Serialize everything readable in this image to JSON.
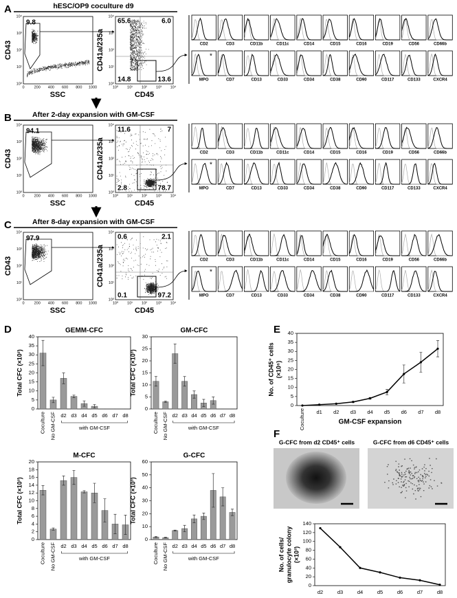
{
  "panels": {
    "labels": [
      "A",
      "B",
      "C",
      "D",
      "E",
      "F"
    ],
    "flow": {
      "axes": {
        "cd43": "CD43",
        "ssc": "SSC",
        "cd41": "CD41a/235a",
        "cd45": "CD45"
      },
      "log_ticks": [
        "10⁰",
        "10¹",
        "10²",
        "10³",
        "10⁴"
      ],
      "ssc_ticks": [
        "0",
        "200",
        "400",
        "600",
        "800",
        "1000"
      ],
      "markers": [
        [
          "CD2",
          "CD3",
          "CD11b",
          "CD11c",
          "CD14",
          "CD15",
          "CD16",
          "CD19",
          "CD56",
          "CD66b"
        ],
        [
          "MPO",
          "CD7",
          "CD13",
          "CD33",
          "CD34",
          "CD38",
          "CD90",
          "CD117",
          "CD133",
          "CXCR4"
        ]
      ],
      "asterisk": "*",
      "rows": [
        {
          "title": "hESC/OP9 coculture d9",
          "gate": "9.8",
          "quadrants": [
            "65.6",
            "6.0",
            "14.8",
            "13.6"
          ]
        },
        {
          "title": "After 2-day expansion with GM-CSF",
          "gate": "94.1",
          "quadrants": [
            "11.6",
            "7",
            "2.8",
            "78.7"
          ]
        },
        {
          "title": "After 8-day expansion with GM-CSF",
          "gate": "97.9",
          "quadrants": [
            "0.6",
            "2.1",
            "0.1",
            "97.2"
          ]
        }
      ]
    },
    "f_images": [
      "G-CFC from d2 CD45⁺ cells",
      "G-CFC from d6 CD45⁺ cells"
    ]
  },
  "chart_data": [
    {
      "type": "bar",
      "title": "GEMM-CFC",
      "ylabel": "Total CFC (×10²)",
      "categories": [
        "Coculture",
        "No GM-CSF",
        "d2",
        "d3",
        "d4",
        "d5",
        "d6",
        "d7",
        "d8"
      ],
      "values": [
        31,
        5,
        17,
        7,
        3,
        1.5,
        0,
        0,
        0
      ],
      "errors": [
        7,
        1.5,
        3,
        0.7,
        1.5,
        1,
        0,
        0,
        0
      ],
      "color": "#9a9a9a",
      "ylim": [
        0,
        40
      ],
      "yticks": [
        0,
        5,
        10,
        15,
        20,
        25,
        30,
        35,
        40
      ],
      "group_label": "with GM-CSF"
    },
    {
      "type": "bar",
      "title": "GM-CFC",
      "ylabel": "Total CFC (×10³)",
      "categories": [
        "Coculture",
        "No GM-CSF",
        "d2",
        "d3",
        "d4",
        "d5",
        "d6",
        "d7",
        "d8"
      ],
      "values": [
        11.5,
        3,
        23,
        11.5,
        6,
        2.5,
        3.5,
        0,
        0
      ],
      "errors": [
        2,
        0.3,
        4,
        2,
        1.5,
        1.5,
        1.5,
        0,
        0
      ],
      "color": "#9a9a9a",
      "ylim": [
        0,
        30
      ],
      "yticks": [
        0,
        5,
        10,
        15,
        20,
        25,
        30
      ],
      "group_label": "with GM-CSF"
    },
    {
      "type": "bar",
      "title": "M-CFC",
      "ylabel": "Total CFC (×10³)",
      "categories": [
        "Coculture",
        "No GM-CSF",
        "d2",
        "d3",
        "d4",
        "d5",
        "d6",
        "d7",
        "d8"
      ],
      "values": [
        12.7,
        2.7,
        15.2,
        16,
        12.3,
        12,
        7.5,
        4,
        3.8
      ],
      "errors": [
        1.2,
        0.3,
        1.2,
        1.8,
        0.3,
        2.5,
        3,
        2.5,
        2.5
      ],
      "color": "#9a9a9a",
      "ylim": [
        0,
        20
      ],
      "yticks": [
        0,
        2,
        4,
        6,
        8,
        10,
        12,
        14,
        16,
        18,
        20
      ],
      "group_label": "with GM-CSF"
    },
    {
      "type": "bar",
      "title": "G-CFC",
      "ylabel": "Total CFC (×10³)",
      "categories": [
        "Coculture",
        "No GM-CSF",
        "d2",
        "d3",
        "d4",
        "d5",
        "d6",
        "d7",
        "d8"
      ],
      "values": [
        2,
        1.5,
        7,
        8.5,
        16,
        18,
        38,
        33,
        21
      ],
      "errors": [
        0.5,
        0.3,
        0.3,
        2.5,
        3,
        2.5,
        13,
        7,
        2.5
      ],
      "color": "#9a9a9a",
      "ylim": [
        0,
        60
      ],
      "yticks": [
        0,
        10,
        20,
        30,
        40,
        50,
        60
      ],
      "group_label": "with GM-CSF"
    },
    {
      "type": "line",
      "ylabel": [
        "No. of CD45⁺ cells",
        "(×10⁶)"
      ],
      "xlabel": "GM-CSF expansion",
      "categories": [
        "Coculture",
        "d1",
        "d2",
        "d3",
        "d4",
        "d5",
        "d6",
        "d7",
        "d8"
      ],
      "values": [
        0,
        0.5,
        1,
        2,
        4,
        7.5,
        17.5,
        24,
        31.5
      ],
      "errors": [
        0,
        0.2,
        0.2,
        0.3,
        0.5,
        1.5,
        5,
        5.5,
        4.5
      ],
      "color": "#000000",
      "ylim": [
        0,
        40
      ],
      "yticks": [
        0,
        5,
        10,
        15,
        20,
        25,
        30,
        35,
        40
      ]
    },
    {
      "type": "line",
      "ylabel": [
        "No. of cells/",
        "granulocyte colony",
        "(×10³)"
      ],
      "categories": [
        "d2",
        "d3",
        "d4",
        "d5",
        "d6",
        "d7",
        "d8"
      ],
      "values": [
        130,
        87,
        40,
        30,
        18,
        12,
        2
      ],
      "color": "#000000",
      "ylim": [
        0,
        140
      ],
      "yticks": [
        0,
        20,
        40,
        60,
        80,
        100,
        120,
        140
      ]
    }
  ]
}
